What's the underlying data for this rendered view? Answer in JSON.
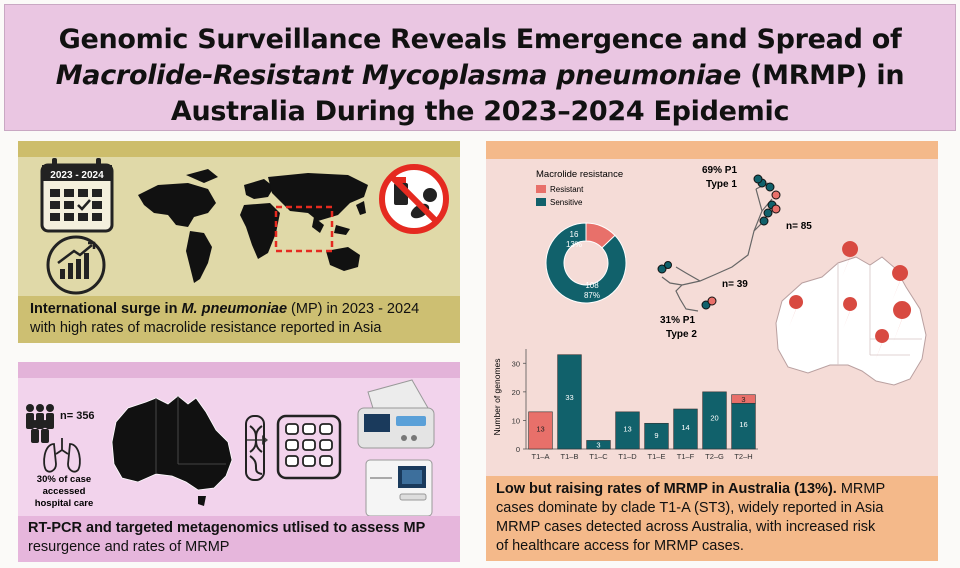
{
  "title": {
    "line1": "Genomic Surveillance Reveals Emergence and Spread of",
    "line2_italic": "Macrolide-Resistant ",
    "line2_italic_species": "Mycoplasma pneumoniae",
    "line2_rest": " (MRMP) in",
    "line3": "Australia During the 2023–2024 Epidemic"
  },
  "panel1": {
    "calendar_label": "2023 - 2024",
    "caption_bold": "International surge in ",
    "caption_bold_italic": "M. pneumoniae",
    "caption_rest1": " (MP) in 2023 - 2024",
    "caption_rest2": "with high rates of macrolide resistance reported in Asia"
  },
  "panel2": {
    "n_label": "n= 356",
    "care_line1": "30% of case",
    "care_line2": "accessed",
    "care_line3": "hospital care",
    "caption_bold": "RT-PCR and targeted metagenomics utlised to assess MP",
    "caption_rest": "resurgence and rates of MRMP"
  },
  "panel3": {
    "legend_title": "Macrolide resistance",
    "legend_resistant": "Resistant",
    "legend_sensitive": "Sensitive",
    "donut_resistant_n": "16",
    "donut_resistant_pct": "13%",
    "donut_sensitive_n": "108",
    "donut_sensitive_pct": "87%",
    "tree_top_pct": "69% P1",
    "tree_top_type": "Type 1",
    "tree_top_n": "n= 85",
    "tree_bottom_pct": "31% P1",
    "tree_bottom_type": "Type 2",
    "tree_bottom_n": "n= 39",
    "caption_bold": "Low but raising rates of MRMP in Australia (13%).",
    "caption_rest1": " MRMP",
    "caption_rest2": "cases dominate by clade T1-A (ST3), widely reported in Asia",
    "caption_rest3": "MRMP cases detected across Australia, with increased risk",
    "caption_rest4": "of healthcare access for MRMP cases."
  },
  "colors": {
    "resistant": "#e8706a",
    "sensitive": "#11616b",
    "title_bg": "#eac6e2"
  },
  "chart_data": [
    {
      "type": "pie",
      "title": "Macrolide resistance",
      "categories": [
        "Resistant",
        "Sensitive"
      ],
      "values": [
        16,
        108
      ],
      "percent_labels": [
        "13%",
        "87%"
      ]
    },
    {
      "type": "bar",
      "stacked": true,
      "ylabel": "Number of genomes",
      "xlabel": "",
      "categories": [
        "T1–A",
        "T1–B",
        "T1–C",
        "T1–D",
        "T1–E",
        "T1–F",
        "T2–G",
        "T2–H"
      ],
      "series": [
        {
          "name": "Resistant",
          "values": [
            13,
            0,
            0,
            0,
            0,
            0,
            0,
            3
          ]
        },
        {
          "name": "Sensitive",
          "values": [
            0,
            33,
            3,
            13,
            9,
            14,
            20,
            16
          ]
        }
      ],
      "data_labels": [
        {
          "category": "T1–A",
          "series": "Resistant",
          "text": "13"
        },
        {
          "category": "T1–B",
          "series": "Sensitive",
          "text": "33"
        },
        {
          "category": "T1–C",
          "series": "Sensitive",
          "text": "3"
        },
        {
          "category": "T1–D",
          "series": "Sensitive",
          "text": "13"
        },
        {
          "category": "T1–E",
          "series": "Sensitive",
          "text": "9"
        },
        {
          "category": "T1–F",
          "series": "Sensitive",
          "text": "14"
        },
        {
          "category": "T2–G",
          "series": "Sensitive",
          "text": "20"
        },
        {
          "category": "T2–H",
          "series": "Sensitive",
          "text": "16"
        },
        {
          "category": "T2–H",
          "series": "Resistant",
          "text": "3"
        }
      ],
      "yticks": [
        0,
        10,
        20,
        30
      ],
      "ylim": [
        0,
        35
      ]
    }
  ]
}
